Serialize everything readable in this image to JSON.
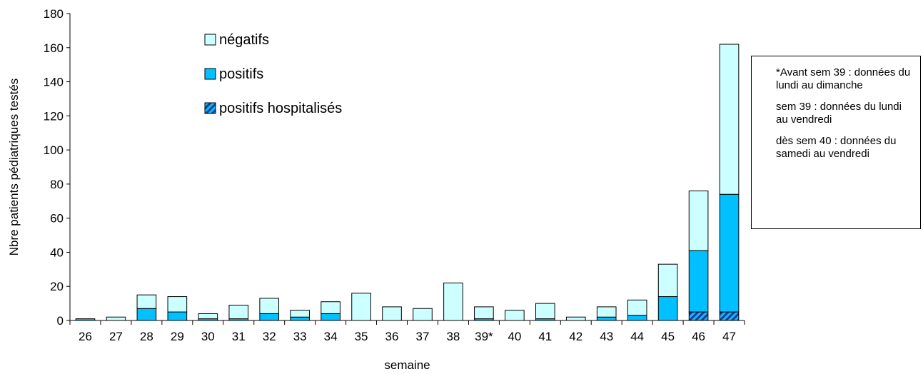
{
  "chart_data": {
    "type": "bar",
    "stacked": true,
    "categories": [
      "26",
      "27",
      "28",
      "29",
      "30",
      "31",
      "32",
      "33",
      "34",
      "35",
      "36",
      "37",
      "38",
      "39*",
      "40",
      "41",
      "42",
      "43",
      "44",
      "45",
      "46",
      "47"
    ],
    "series": [
      {
        "name": "positifs hospitalisés",
        "color": "#1f3a93",
        "pattern": "diagonal-stripes",
        "values": [
          0,
          0,
          0,
          0,
          0,
          0,
          0,
          0,
          0,
          0,
          0,
          0,
          0,
          0,
          0,
          0,
          0,
          0,
          0,
          0,
          5,
          5
        ]
      },
      {
        "name": "positifs",
        "color": "#00c0ff",
        "values": [
          1,
          0,
          7,
          5,
          1,
          1,
          4,
          2,
          4,
          0,
          0,
          0,
          0,
          1,
          0,
          1,
          0,
          2,
          3,
          14,
          36,
          69
        ]
      },
      {
        "name": "négatifs",
        "color": "#ccffff",
        "values": [
          0,
          2,
          8,
          9,
          3,
          8,
          9,
          4,
          7,
          16,
          8,
          7,
          22,
          7,
          6,
          9,
          2,
          6,
          9,
          19,
          35,
          88
        ]
      }
    ],
    "xlabel": "semaine",
    "ylabel": "Nbre patients pédiatriques testés",
    "ylim": [
      0,
      180
    ],
    "yticks": [
      0,
      20,
      40,
      60,
      80,
      100,
      120,
      140,
      160,
      180
    ],
    "legend": {
      "placement": "top-center",
      "order": [
        "négatifs",
        "positifs",
        "positifs hospitalisés"
      ]
    }
  },
  "note": {
    "lines": [
      "*Avant sem 39 : données du lundi au dimanche",
      "sem 39 : données du lundi au vendredi",
      "dès sem 40 : données du samedi au vendredi"
    ]
  }
}
